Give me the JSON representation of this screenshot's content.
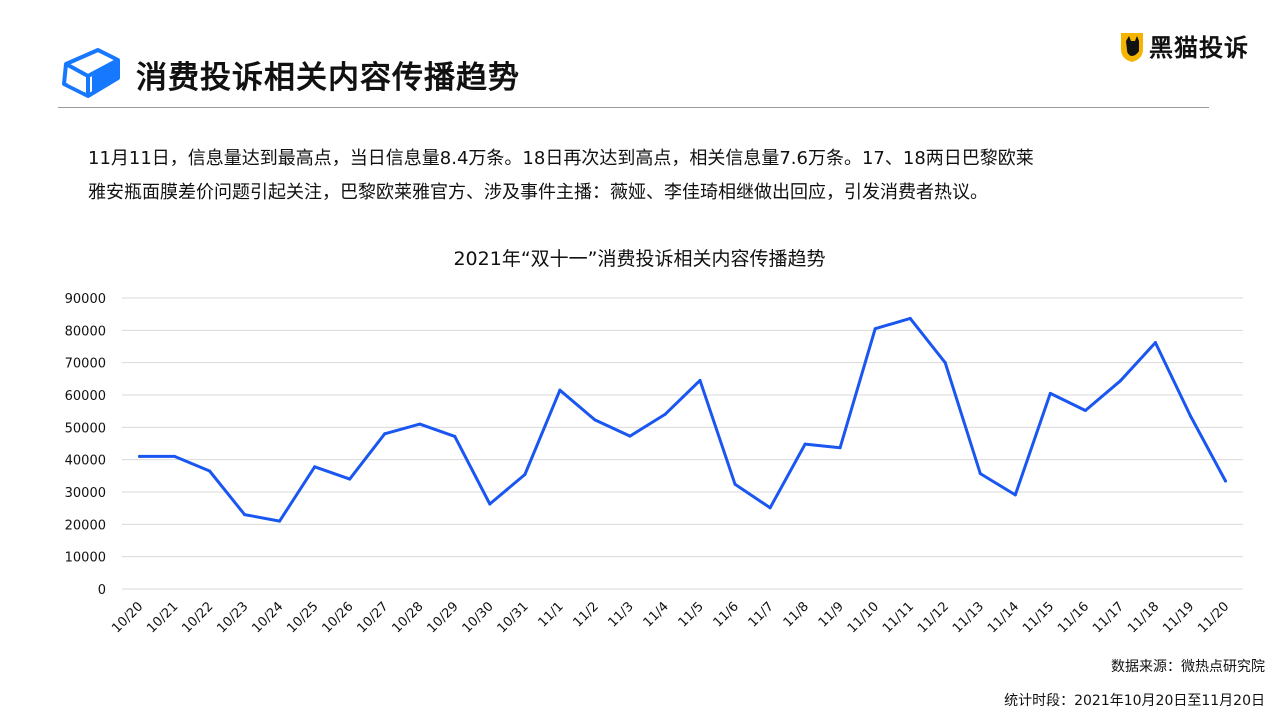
{
  "header": {
    "title": "消费投诉相关内容传播趋势",
    "brand_name": "黑猫投诉"
  },
  "summary": {
    "line1": "11月11日，信息量达到最高点，当日信息量8.4万条。18日再次达到高点，相关信息量7.6万条。17、18两日巴黎欧莱",
    "line2": "雅安瓶面膜差价问题引起关注，巴黎欧莱雅官方、涉及事件主播：薇娅、李佳琦相继做出回应，引发消费者热议。"
  },
  "footer": {
    "source": "数据来源：微热点研究院",
    "period": "统计时段：2021年10月20日至11月20日"
  },
  "colors": {
    "line": "#1a56f0",
    "grid": "#d9d9d9",
    "logo_blue": "#1677ff",
    "brand_yellow": "#f5b400"
  },
  "icons": {
    "logo": "blue-tilted-cube-logo",
    "brand": "black-cat-shield-logo"
  },
  "chart_data": {
    "type": "line",
    "title": "2021年“双十一”消费投诉相关内容传播趋势",
    "xlabel": "",
    "ylabel": "",
    "ylim": [
      0,
      90000
    ],
    "yticks": [
      0,
      10000,
      20000,
      30000,
      40000,
      50000,
      60000,
      70000,
      80000,
      90000
    ],
    "grid": true,
    "legend": "none",
    "categories": [
      "10/20",
      "10/21",
      "10/22",
      "10/23",
      "10/24",
      "10/25",
      "10/26",
      "10/27",
      "10/28",
      "10/29",
      "10/30",
      "10/31",
      "11/1",
      "11/2",
      "11/3",
      "11/4",
      "11/5",
      "11/6",
      "11/7",
      "11/8",
      "11/9",
      "11/10",
      "11/11",
      "11/12",
      "11/13",
      "11/14",
      "11/15",
      "11/16",
      "11/17",
      "11/18",
      "11/19",
      "11/20"
    ],
    "series": [
      {
        "values": [
          41000,
          41000,
          36500,
          23000,
          21000,
          37800,
          34000,
          48000,
          51000,
          47200,
          26300,
          35400,
          61500,
          52300,
          47300,
          54000,
          64500,
          32400,
          25100,
          44800,
          43700,
          80500,
          83700,
          70000,
          35700,
          29100,
          60500,
          55200,
          64400,
          76200,
          53500,
          33400
        ]
      }
    ]
  }
}
